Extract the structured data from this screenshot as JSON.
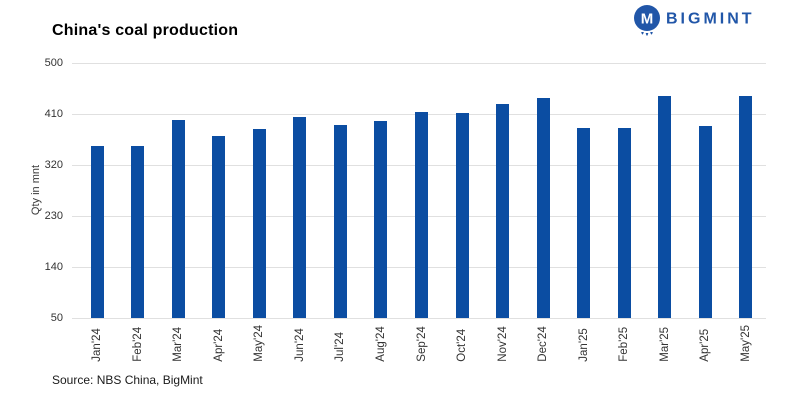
{
  "header": {
    "title": "China's coal production",
    "logo_text": "BIGMINT",
    "logo_icon": "m-drip-circle-icon"
  },
  "footer": {
    "source": "Source: NBS China, BigMint"
  },
  "colors": {
    "bar": "#0B4DA2",
    "brand": "#2156A8",
    "gridline": "#E0E0E0"
  },
  "chart_data": {
    "type": "bar",
    "title": "China's coal production",
    "xlabel": "",
    "ylabel": "Qty in mnt",
    "ylim": [
      50,
      500
    ],
    "yticks": [
      50,
      140,
      230,
      320,
      410,
      500
    ],
    "grid": true,
    "legend": "none",
    "categories": [
      "Jan'24",
      "Feb'24",
      "Mar'24",
      "Apr'24",
      "May'24",
      "Jun'24",
      "Jul'24",
      "Aug'24",
      "Sep'24",
      "Oct'24",
      "Nov'24",
      "Dec'24",
      "Jan'25",
      "Feb'25",
      "Mar'25",
      "Apr'25",
      "May'25"
    ],
    "values": [
      353,
      353,
      399,
      372,
      384,
      405,
      390,
      397,
      414,
      412,
      428,
      439,
      385,
      385,
      441,
      389,
      441
    ]
  }
}
